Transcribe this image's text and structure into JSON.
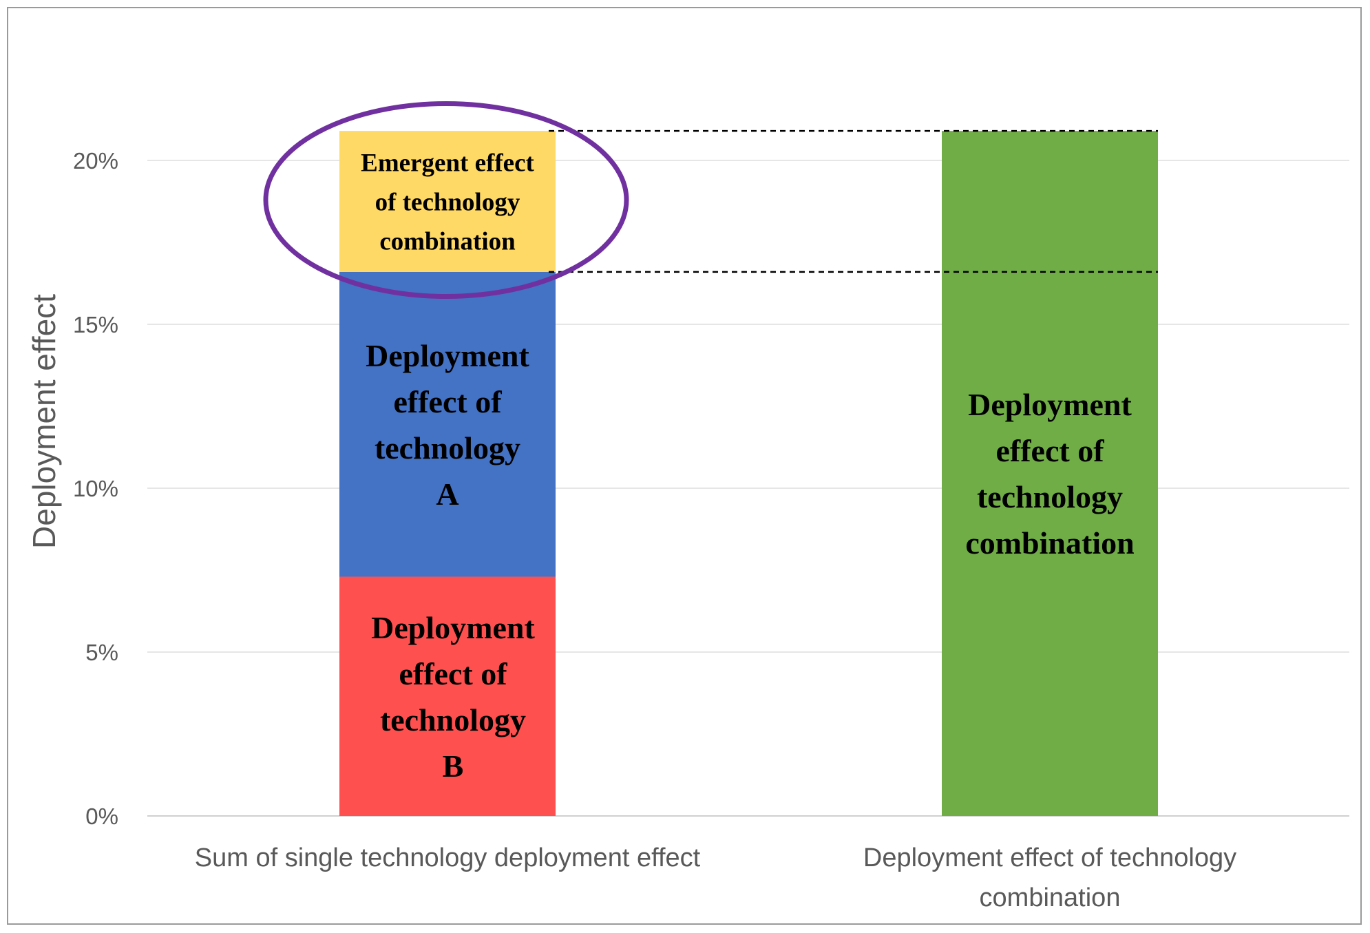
{
  "chart_data": {
    "type": "bar",
    "stacked": true,
    "title": "",
    "xlabel": "",
    "ylabel": "Deployment effect",
    "ylim": [
      0,
      21
    ],
    "yticks": [
      "0%",
      "5%",
      "10%",
      "15%",
      "20%"
    ],
    "ytick_values": [
      0,
      5,
      10,
      15,
      20
    ],
    "categories": [
      [
        "Sum of single technology deployment effect"
      ],
      [
        "Deployment effect of technology",
        "combination"
      ]
    ],
    "stacks": [
      {
        "category_index": 0,
        "segments": [
          {
            "name": "technology-b",
            "start": 0,
            "end": 7.3,
            "color": "#ff5050",
            "label": [
              "Deployment",
              "effect of",
              "technology",
              "B"
            ]
          },
          {
            "name": "technology-a",
            "start": 7.3,
            "end": 16.6,
            "color": "#4472c4",
            "label": [
              "Deployment",
              "effect of",
              "technology",
              "A"
            ]
          },
          {
            "name": "emergent",
            "start": 16.6,
            "end": 20.9,
            "color": "#ffd966",
            "label": [
              "Emergent effect",
              "of technology",
              "combination"
            ]
          }
        ]
      },
      {
        "category_index": 1,
        "segments": [
          {
            "name": "combination",
            "start": 0,
            "end": 20.9,
            "color": "#70ad47",
            "label": [
              "Deployment",
              "effect of",
              "technology",
              "combination"
            ]
          }
        ]
      }
    ],
    "reference_lines": [
      20.9,
      16.6
    ],
    "highlight": {
      "segment": "emergent",
      "shape": "ellipse",
      "color": "#7030a0"
    }
  }
}
